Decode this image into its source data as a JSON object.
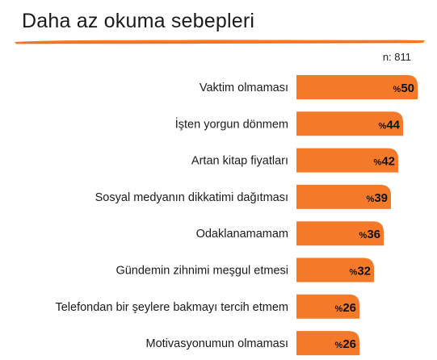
{
  "title": "Daha az okuma sebepleri",
  "sample_label": "n: 811",
  "accent_color": "#F47A2A",
  "chart_data": {
    "type": "bar",
    "orientation": "horizontal",
    "title": "Daha az okuma sebepleri",
    "value_prefix": "%",
    "categories": [
      "Vaktim olmaması",
      "İşten yorgun dönmem",
      "Artan kitap fiyatları",
      "Sosyal medyanın dikkatimi dağıtması",
      "Odaklanamamam",
      "Gündemin zihnimi meşgul etmesi",
      "Telefondan bir şeylere bakmayı tercih etmem",
      "Motivasyonumun olmaması"
    ],
    "values": [
      50,
      44,
      42,
      39,
      36,
      32,
      26,
      26
    ],
    "xlim": [
      0,
      50
    ],
    "grid": false,
    "legend": "none"
  }
}
